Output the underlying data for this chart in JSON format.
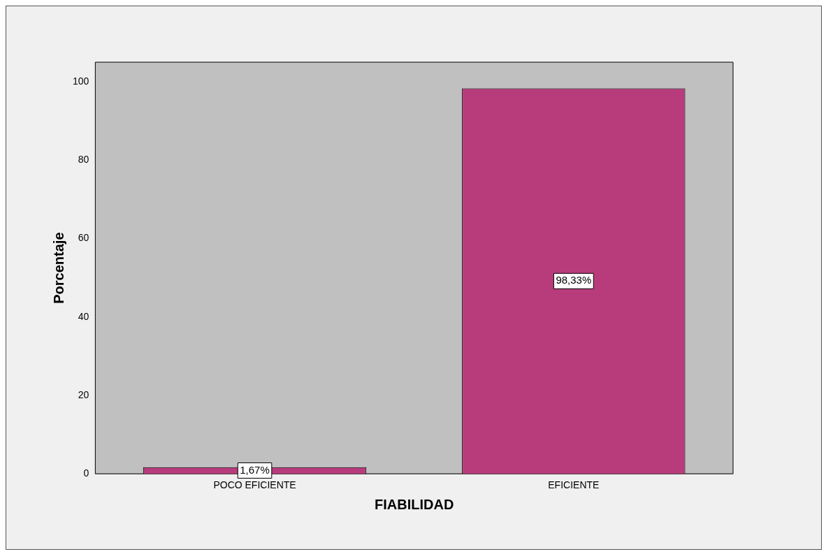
{
  "chart_data": {
    "type": "bar",
    "xlabel": "FIABILIDAD",
    "ylabel": "Porcentaje",
    "categories": [
      "POCO EFICIENTE",
      "EFICIENTE"
    ],
    "values": [
      1.67,
      98.33
    ],
    "value_labels": [
      "1,67%",
      "98,33%"
    ],
    "color": "#b83c7c",
    "ylim": [
      0,
      105
    ],
    "yticks": [
      0,
      20,
      40,
      60,
      80,
      100
    ],
    "grid": false,
    "legend": false
  }
}
